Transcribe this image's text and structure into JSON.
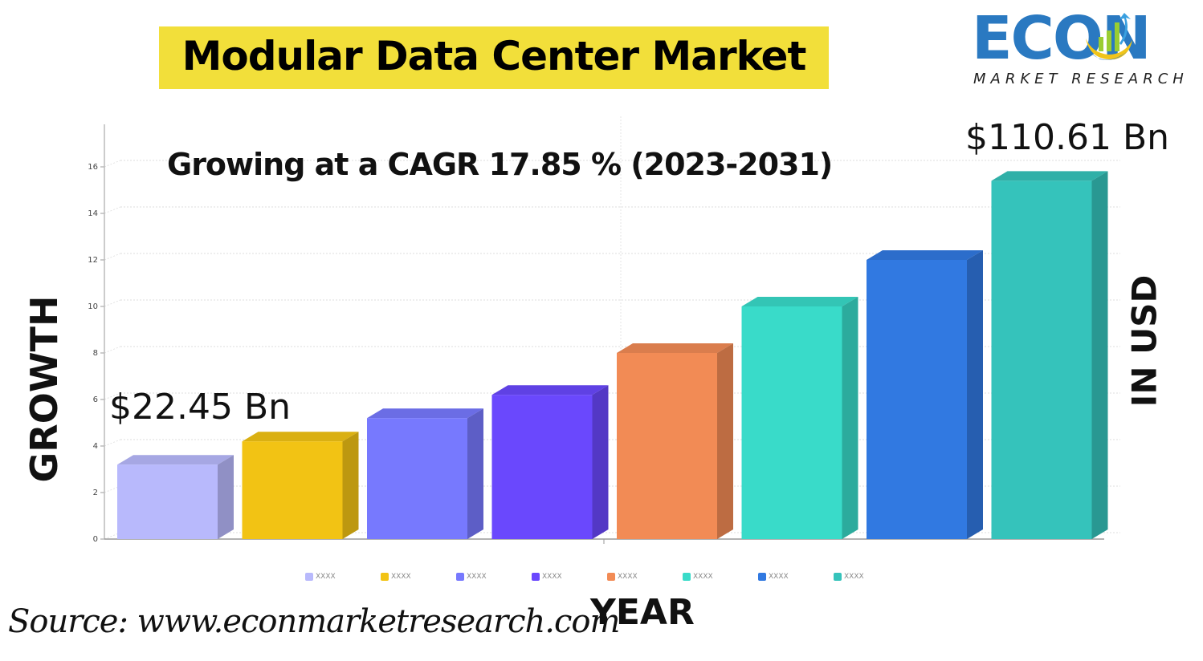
{
  "title": "Modular Data Center Market",
  "subtitle": "Growing at a CAGR 17.85 % (2023-2031)",
  "logo": {
    "word": "ECON",
    "sub": "MARKET RESEARCH"
  },
  "labels": {
    "start_value": "$22.45 Bn",
    "end_value": "$110.61 Bn",
    "y_axis_title": "GROWTH",
    "right_axis_title": "IN USD",
    "x_axis_title": "YEAR",
    "source": "Source:  www.econmarketresearch.com"
  },
  "legend": [
    {
      "label": "XXXX",
      "color": "#b8b9fc"
    },
    {
      "label": "XXXX",
      "color": "#f2c314"
    },
    {
      "label": "XXXX",
      "color": "#7779fe"
    },
    {
      "label": "XXXX",
      "color": "#6a48fd"
    },
    {
      "label": "XXXX",
      "color": "#f28b55"
    },
    {
      "label": "XXXX",
      "color": "#39dbc9"
    },
    {
      "label": "XXXX",
      "color": "#3179e1"
    },
    {
      "label": "XXXX",
      "color": "#35c3bb"
    }
  ],
  "chart_data": {
    "type": "bar",
    "title": "Modular Data Center Market",
    "subtitle": "Growing at a CAGR 17.85 % (2023-2031)",
    "xlabel": "YEAR",
    "ylabel": "GROWTH",
    "right_label": "IN USD",
    "categories": [
      "XXXX",
      "XXXX",
      "XXXX",
      "XXXX",
      "XXXX",
      "XXXX",
      "XXXX",
      "XXXX"
    ],
    "values": [
      3.2,
      4.2,
      5.2,
      6.2,
      8.0,
      10.0,
      12.0,
      15.4
    ],
    "colors": [
      "#b8b9fc",
      "#f2c314",
      "#7779fe",
      "#6a48fd",
      "#f28b55",
      "#39dbc9",
      "#3179e1",
      "#35c3bb"
    ],
    "yticks": [
      0,
      2,
      4,
      6,
      8,
      10,
      12,
      14,
      16
    ],
    "ylim": [
      0,
      17
    ],
    "grid": true,
    "legend_position": "bottom",
    "annotations": [
      "$22.45 Bn",
      "$110.61 Bn"
    ]
  }
}
